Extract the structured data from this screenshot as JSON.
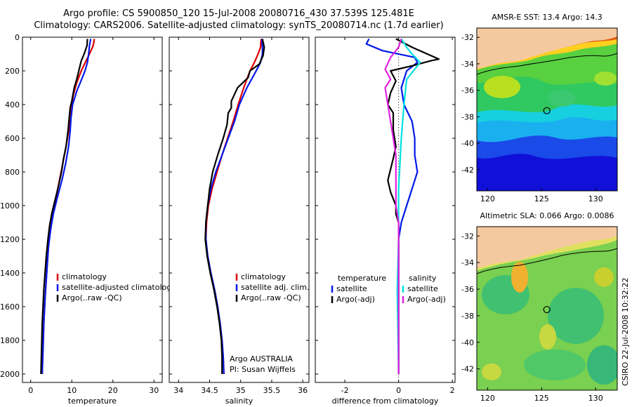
{
  "header": {
    "title_line1": "Argo profile: CS 5900850_120 15-Jul-2008 20080716_430 37.539S 125.481E",
    "title_line2": "Climatology: CARS2006. Satellite-adjusted climatology: synTS_20080714.nc (1.7d earlier)"
  },
  "side_note": "CSIRO 22-Jul-2008 10:32:22",
  "colors": {
    "climatology": "#e00000",
    "satellite": "#0018e8",
    "argo": "#000000",
    "sal_satellite": "#00e0e0",
    "sal_argo": "#e020e0",
    "land": "#f5c9a0"
  },
  "chart_data": [
    {
      "type": "line",
      "xlabel": "temperature",
      "xlim": [
        -2,
        32
      ],
      "xticks": [
        0,
        10,
        20,
        30
      ],
      "ylim": [
        2050,
        0
      ],
      "yticks": [
        0,
        200,
        400,
        600,
        800,
        1000,
        1200,
        1400,
        1600,
        1800,
        2000
      ],
      "legend": [
        "climatology",
        "satellite-adjusted climatolog",
        "Argo(..raw -QC)"
      ],
      "series": [
        {
          "name": "climatology",
          "color": "#e00000",
          "points": [
            [
              15.5,
              10
            ],
            [
              15.2,
              50
            ],
            [
              14.3,
              100
            ],
            [
              13.3,
              150
            ],
            [
              12.3,
              200
            ],
            [
              11.2,
              270
            ],
            [
              10.3,
              350
            ],
            [
              9.8,
              450
            ],
            [
              9.3,
              550
            ],
            [
              8.6,
              650
            ],
            [
              7.8,
              750
            ],
            [
              7,
              850
            ],
            [
              6.2,
              950
            ],
            [
              5.4,
              1050
            ],
            [
              4.8,
              1150
            ],
            [
              4.3,
              1250
            ],
            [
              3.9,
              1400
            ],
            [
              3.5,
              1550
            ],
            [
              3.2,
              1700
            ],
            [
              3,
              1850
            ],
            [
              2.8,
              2000
            ]
          ]
        },
        {
          "name": "satellite-adjusted climatology",
          "color": "#0018e8",
          "points": [
            [
              14.6,
              10
            ],
            [
              14.3,
              50
            ],
            [
              14.1,
              100
            ],
            [
              13.8,
              150
            ],
            [
              13.2,
              200
            ],
            [
              12.4,
              250
            ],
            [
              11.2,
              320
            ],
            [
              10.2,
              400
            ],
            [
              9.8,
              480
            ],
            [
              9.6,
              560
            ],
            [
              9.2,
              650
            ],
            [
              8.5,
              750
            ],
            [
              7.6,
              850
            ],
            [
              6.5,
              950
            ],
            [
              5.5,
              1050
            ],
            [
              4.8,
              1150
            ],
            [
              4.3,
              1250
            ],
            [
              3.9,
              1400
            ],
            [
              3.5,
              1550
            ],
            [
              3.2,
              1700
            ],
            [
              3,
              1850
            ],
            [
              2.8,
              2000
            ]
          ]
        },
        {
          "name": "Argo(..raw -QC)",
          "color": "#000000",
          "points": [
            [
              13.8,
              10
            ],
            [
              13.7,
              50
            ],
            [
              13,
              100
            ],
            [
              12.3,
              140
            ],
            [
              11.7,
              200
            ],
            [
              11.2,
              250
            ],
            [
              10.6,
              300
            ],
            [
              10,
              380
            ],
            [
              9.6,
              420
            ],
            [
              9.3,
              500
            ],
            [
              9.1,
              550
            ],
            [
              8.6,
              650
            ],
            [
              8,
              720
            ],
            [
              7.5,
              800
            ],
            [
              6.8,
              880
            ],
            [
              6,
              960
            ],
            [
              5.2,
              1040
            ],
            [
              4.6,
              1120
            ],
            [
              4.2,
              1200
            ],
            [
              3.8,
              1300
            ],
            [
              3.5,
              1400
            ],
            [
              3.2,
              1500
            ],
            [
              3,
              1600
            ],
            [
              2.8,
              1700
            ],
            [
              2.7,
              1800
            ],
            [
              2.6,
              1900
            ],
            [
              2.5,
              2000
            ]
          ]
        }
      ]
    },
    {
      "type": "line",
      "xlabel": "salinity",
      "xlim": [
        33.85,
        36.1
      ],
      "xticks": [
        34,
        34.5,
        35,
        35.5,
        36
      ],
      "xticklabels": [
        "34",
        "34.5",
        "35",
        "35.5",
        "36"
      ],
      "ylim": [
        2050,
        0
      ],
      "legend": [
        "climatology",
        "satellite adj. clim.",
        "Argo(..raw -QC)"
      ],
      "annotation": [
        "Argo AUSTRALIA",
        "PI: Susan Wijffels"
      ],
      "series": [
        {
          "name": "climatology",
          "color": "#e00000",
          "points": [
            [
              35.33,
              10
            ],
            [
              35.32,
              60
            ],
            [
              35.28,
              100
            ],
            [
              35.22,
              150
            ],
            [
              35.15,
              200
            ],
            [
              35.05,
              300
            ],
            [
              34.96,
              400
            ],
            [
              34.88,
              500
            ],
            [
              34.79,
              600
            ],
            [
              34.7,
              700
            ],
            [
              34.62,
              800
            ],
            [
              34.54,
              900
            ],
            [
              34.48,
              1000
            ],
            [
              34.45,
              1100
            ],
            [
              34.44,
              1200
            ],
            [
              34.47,
              1300
            ],
            [
              34.52,
              1400
            ],
            [
              34.58,
              1500
            ],
            [
              34.63,
              1600
            ],
            [
              34.67,
              1700
            ],
            [
              34.7,
              1800
            ],
            [
              34.72,
              1900
            ],
            [
              34.73,
              2000
            ]
          ]
        },
        {
          "name": "satellite adj. clim.",
          "color": "#0018e8",
          "points": [
            [
              35.34,
              10
            ],
            [
              35.35,
              60
            ],
            [
              35.35,
              100
            ],
            [
              35.32,
              150
            ],
            [
              35.25,
              200
            ],
            [
              35.1,
              300
            ],
            [
              34.98,
              400
            ],
            [
              34.9,
              500
            ],
            [
              34.8,
              600
            ],
            [
              34.7,
              700
            ],
            [
              34.6,
              800
            ],
            [
              34.52,
              900
            ],
            [
              34.47,
              1000
            ],
            [
              34.44,
              1100
            ],
            [
              34.44,
              1200
            ],
            [
              34.47,
              1300
            ],
            [
              34.52,
              1400
            ],
            [
              34.58,
              1500
            ],
            [
              34.63,
              1600
            ],
            [
              34.67,
              1700
            ],
            [
              34.7,
              1800
            ],
            [
              34.72,
              1900
            ],
            [
              34.73,
              2000
            ]
          ]
        },
        {
          "name": "Argo(..raw -QC)",
          "color": "#000000",
          "points": [
            [
              35.35,
              10
            ],
            [
              35.38,
              60
            ],
            [
              35.36,
              110
            ],
            [
              35.3,
              160
            ],
            [
              35.15,
              200
            ],
            [
              35.12,
              240
            ],
            [
              34.95,
              300
            ],
            [
              34.85,
              380
            ],
            [
              34.85,
              420
            ],
            [
              34.8,
              450
            ],
            [
              34.78,
              520
            ],
            [
              34.72,
              600
            ],
            [
              34.63,
              700
            ],
            [
              34.55,
              800
            ],
            [
              34.5,
              900
            ],
            [
              34.47,
              1000
            ],
            [
              34.44,
              1100
            ],
            [
              34.43,
              1200
            ],
            [
              34.46,
              1300
            ],
            [
              34.51,
              1400
            ],
            [
              34.57,
              1500
            ],
            [
              34.62,
              1600
            ],
            [
              34.66,
              1700
            ],
            [
              34.69,
              1800
            ],
            [
              34.7,
              1900
            ],
            [
              34.7,
              2000
            ]
          ]
        }
      ]
    },
    {
      "type": "line",
      "xlabel": "difference from climatology",
      "xlim": [
        -3.1,
        2.1
      ],
      "xticks": [
        -2,
        0,
        2
      ],
      "ylim": [
        2050,
        0
      ],
      "legend_left_title": "temperature",
      "legend_right_title": "salinity",
      "legend_left": [
        "satellite",
        "Argo(-adj)"
      ],
      "legend_right": [
        "satellite",
        "Argo(-adj)"
      ],
      "series": [
        {
          "name": "temperature satellite",
          "color": "#0018e8",
          "points": [
            [
              -1.1,
              10
            ],
            [
              -1.2,
              40
            ],
            [
              -0.6,
              80
            ],
            [
              0.6,
              120
            ],
            [
              0.7,
              150
            ],
            [
              0.3,
              200
            ],
            [
              0.1,
              300
            ],
            [
              0.2,
              400
            ],
            [
              0.5,
              500
            ],
            [
              0.6,
              600
            ],
            [
              0.6,
              700
            ],
            [
              0.7,
              800
            ],
            [
              0.5,
              900
            ],
            [
              0.3,
              1000
            ],
            [
              0.1,
              1100
            ],
            [
              0,
              1200
            ],
            [
              0,
              1500
            ],
            [
              0,
              2000
            ]
          ]
        },
        {
          "name": "temperature Argo(-adj)",
          "color": "#000000",
          "points": [
            [
              -0.1,
              10
            ],
            [
              0.5,
              60
            ],
            [
              1.5,
              130
            ],
            [
              1.2,
              140
            ],
            [
              0.5,
              170
            ],
            [
              -0.3,
              200
            ],
            [
              -0.1,
              260
            ],
            [
              -0.3,
              330
            ],
            [
              -0.4,
              400
            ],
            [
              -0.2,
              450
            ],
            [
              -0.2,
              550
            ],
            [
              -0.1,
              650
            ],
            [
              -0.2,
              720
            ],
            [
              -0.4,
              850
            ],
            [
              -0.3,
              920
            ],
            [
              -0.1,
              1000
            ],
            [
              -0.1,
              1050
            ],
            [
              0,
              1100
            ],
            [
              0,
              1200
            ],
            [
              0,
              2000
            ]
          ]
        },
        {
          "name": "salinity satellite",
          "color": "#00e0e0",
          "points": [
            [
              0.1,
              10
            ],
            [
              0.3,
              60
            ],
            [
              0.5,
              100
            ],
            [
              0.8,
              150
            ],
            [
              0.3,
              250
            ],
            [
              0.2,
              400
            ],
            [
              0.1,
              600
            ],
            [
              0,
              900
            ],
            [
              0,
              1100
            ],
            [
              0,
              1200
            ],
            [
              -0.05,
              1500
            ],
            [
              0,
              2000
            ]
          ]
        },
        {
          "name": "salinity Argo(-adj)",
          "color": "#e020e0",
          "points": [
            [
              0.1,
              10
            ],
            [
              0,
              60
            ],
            [
              -0.3,
              120
            ],
            [
              -0.5,
              190
            ],
            [
              -0.3,
              250
            ],
            [
              -0.5,
              300
            ],
            [
              -0.4,
              400
            ],
            [
              -0.3,
              500
            ],
            [
              -0.2,
              600
            ],
            [
              -0.1,
              700
            ],
            [
              -0.1,
              800
            ],
            [
              -0.1,
              900
            ],
            [
              -0.1,
              1000
            ],
            [
              0,
              1100
            ],
            [
              0,
              1200
            ],
            [
              0,
              2000
            ]
          ]
        }
      ]
    }
  ],
  "maps": [
    {
      "title": "AMSR-E SST: 13.4 Argo: 14.3",
      "xticks": [
        120,
        125,
        130
      ],
      "yticks": [
        -32,
        -34,
        -36,
        -38,
        -40,
        -42
      ],
      "xlim": [
        119,
        132
      ],
      "ylim": [
        -31.3,
        -43.6
      ],
      "float_position": [
        125.481,
        -37.539
      ]
    },
    {
      "title": "Altimetric SLA: 0.066 Argo: 0.0086",
      "xticks": [
        120,
        125,
        130
      ],
      "yticks": [
        -32,
        -34,
        -36,
        -38,
        -40,
        -42
      ],
      "xlim": [
        119,
        132
      ],
      "ylim": [
        -31.3,
        -43.6
      ],
      "float_position": [
        125.481,
        -37.539
      ]
    }
  ]
}
